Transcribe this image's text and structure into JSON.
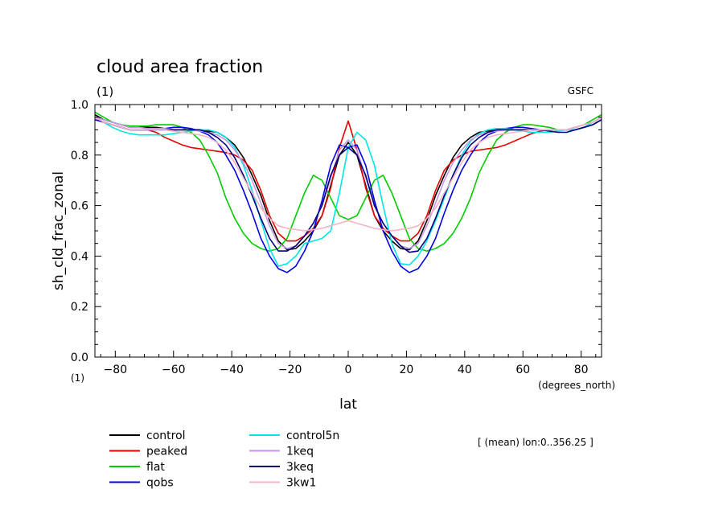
{
  "chart_data": {
    "type": "line",
    "title": "cloud area fraction",
    "subtitle": "(1)",
    "source_label": "GSFC",
    "ylabel": "sh_cld_frac_zonal",
    "xlabel": "lat",
    "xunits": "(degrees_north)",
    "yunits": "(1)",
    "annotation": "[ (mean) lon:0..356.25 ]",
    "xlim": [
      -87,
      87
    ],
    "ylim": [
      0.0,
      1.0
    ],
    "xticks": [
      -80,
      -60,
      -40,
      -20,
      0,
      20,
      40,
      60,
      80
    ],
    "xtick_labels": [
      "−80",
      "−60",
      "−40",
      "−20",
      "0",
      "20",
      "40",
      "60",
      "80"
    ],
    "yticks": [
      0.0,
      0.2,
      0.4,
      0.6,
      0.8,
      1.0
    ],
    "ytick_labels": [
      "0.0",
      "0.2",
      "0.4",
      "0.6",
      "0.8",
      "1.0"
    ],
    "x": [
      -87,
      -84,
      -81,
      -78,
      -75,
      -72,
      -69,
      -66,
      -63,
      -60,
      -57,
      -54,
      -51,
      -48,
      -45,
      -42,
      -39,
      -36,
      -33,
      -30,
      -27,
      -24,
      -21,
      -18,
      -15,
      -12,
      -9,
      -6,
      -3,
      0,
      3,
      6,
      9,
      12,
      15,
      18,
      21,
      24,
      27,
      30,
      33,
      36,
      39,
      42,
      45,
      48,
      51,
      54,
      57,
      60,
      63,
      66,
      69,
      72,
      75,
      78,
      81,
      84,
      87
    ],
    "series": [
      {
        "name": "control",
        "color": "#000000",
        "values": [
          0.96,
          0.94,
          0.93,
          0.92,
          0.91,
          0.91,
          0.91,
          0.91,
          0.905,
          0.9,
          0.9,
          0.9,
          0.9,
          0.895,
          0.89,
          0.87,
          0.84,
          0.79,
          0.72,
          0.64,
          0.54,
          0.46,
          0.425,
          0.43,
          0.46,
          0.5,
          0.56,
          0.68,
          0.8,
          0.85,
          0.8,
          0.68,
          0.56,
          0.5,
          0.46,
          0.43,
          0.425,
          0.46,
          0.54,
          0.64,
          0.72,
          0.79,
          0.84,
          0.87,
          0.89,
          0.895,
          0.9,
          0.9,
          0.9,
          0.9,
          0.9,
          0.9,
          0.9,
          0.9,
          0.9,
          0.91,
          0.92,
          0.93,
          0.95
        ]
      },
      {
        "name": "peaked",
        "color": "#e60000",
        "values": [
          0.95,
          0.93,
          0.92,
          0.91,
          0.9,
          0.9,
          0.9,
          0.89,
          0.87,
          0.855,
          0.84,
          0.83,
          0.825,
          0.82,
          0.815,
          0.81,
          0.8,
          0.78,
          0.74,
          0.66,
          0.56,
          0.49,
          0.46,
          0.46,
          0.48,
          0.51,
          0.56,
          0.67,
          0.83,
          0.935,
          0.82,
          0.67,
          0.56,
          0.51,
          0.48,
          0.46,
          0.46,
          0.49,
          0.56,
          0.66,
          0.74,
          0.78,
          0.8,
          0.815,
          0.82,
          0.825,
          0.83,
          0.84,
          0.855,
          0.87,
          0.885,
          0.895,
          0.9,
          0.9,
          0.9,
          0.91,
          0.92,
          0.93,
          0.95
        ]
      },
      {
        "name": "flat",
        "color": "#00cc00",
        "values": [
          0.97,
          0.95,
          0.93,
          0.92,
          0.915,
          0.915,
          0.915,
          0.92,
          0.92,
          0.92,
          0.91,
          0.89,
          0.86,
          0.8,
          0.73,
          0.63,
          0.55,
          0.49,
          0.45,
          0.43,
          0.42,
          0.43,
          0.47,
          0.56,
          0.65,
          0.72,
          0.7,
          0.63,
          0.56,
          0.545,
          0.56,
          0.63,
          0.7,
          0.72,
          0.65,
          0.56,
          0.47,
          0.43,
          0.42,
          0.43,
          0.45,
          0.49,
          0.55,
          0.63,
          0.73,
          0.8,
          0.86,
          0.89,
          0.91,
          0.92,
          0.92,
          0.915,
          0.91,
          0.9,
          0.9,
          0.91,
          0.92,
          0.94,
          0.96
        ]
      },
      {
        "name": "qobs",
        "color": "#0000e6",
        "values": [
          0.94,
          0.93,
          0.92,
          0.91,
          0.9,
          0.9,
          0.9,
          0.9,
          0.905,
          0.91,
          0.91,
          0.905,
          0.895,
          0.88,
          0.85,
          0.8,
          0.74,
          0.66,
          0.57,
          0.47,
          0.4,
          0.35,
          0.335,
          0.36,
          0.42,
          0.5,
          0.62,
          0.76,
          0.84,
          0.83,
          0.84,
          0.76,
          0.62,
          0.5,
          0.42,
          0.36,
          0.335,
          0.35,
          0.4,
          0.47,
          0.57,
          0.66,
          0.74,
          0.8,
          0.85,
          0.88,
          0.895,
          0.905,
          0.91,
          0.91,
          0.905,
          0.9,
          0.9,
          0.9,
          0.9,
          0.9,
          0.91,
          0.92,
          0.94
        ]
      },
      {
        "name": "control5n",
        "color": "#00e6e6",
        "values": [
          0.95,
          0.93,
          0.91,
          0.895,
          0.885,
          0.88,
          0.88,
          0.88,
          0.88,
          0.885,
          0.89,
          0.895,
          0.9,
          0.9,
          0.89,
          0.87,
          0.83,
          0.76,
          0.66,
          0.54,
          0.43,
          0.36,
          0.37,
          0.4,
          0.45,
          0.46,
          0.47,
          0.5,
          0.65,
          0.83,
          0.89,
          0.86,
          0.76,
          0.6,
          0.45,
          0.37,
          0.365,
          0.4,
          0.46,
          0.54,
          0.63,
          0.72,
          0.8,
          0.855,
          0.885,
          0.9,
          0.905,
          0.905,
          0.9,
          0.895,
          0.89,
          0.89,
          0.89,
          0.895,
          0.9,
          0.9,
          0.91,
          0.93,
          0.95
        ]
      },
      {
        "name": "1keq",
        "color": "#c896e6",
        "values": [
          0.95,
          0.94,
          0.93,
          0.92,
          0.91,
          0.91,
          0.905,
          0.905,
          0.905,
          0.9,
          0.9,
          0.9,
          0.895,
          0.89,
          0.88,
          0.86,
          0.82,
          0.77,
          0.7,
          0.61,
          0.52,
          0.45,
          0.43,
          0.44,
          0.48,
          0.53,
          0.6,
          0.71,
          0.82,
          0.86,
          0.82,
          0.71,
          0.6,
          0.53,
          0.48,
          0.44,
          0.43,
          0.45,
          0.52,
          0.61,
          0.7,
          0.77,
          0.82,
          0.86,
          0.88,
          0.89,
          0.895,
          0.9,
          0.9,
          0.9,
          0.9,
          0.9,
          0.9,
          0.9,
          0.9,
          0.91,
          0.92,
          0.93,
          0.95
        ]
      },
      {
        "name": "3keq",
        "color": "#000080",
        "values": [
          0.95,
          0.93,
          0.92,
          0.91,
          0.9,
          0.9,
          0.9,
          0.9,
          0.9,
          0.9,
          0.9,
          0.9,
          0.9,
          0.89,
          0.87,
          0.84,
          0.79,
          0.72,
          0.64,
          0.55,
          0.47,
          0.42,
          0.42,
          0.44,
          0.48,
          0.53,
          0.6,
          0.72,
          0.8,
          0.83,
          0.8,
          0.72,
          0.6,
          0.53,
          0.48,
          0.44,
          0.415,
          0.42,
          0.47,
          0.55,
          0.64,
          0.72,
          0.79,
          0.84,
          0.87,
          0.89,
          0.9,
          0.9,
          0.9,
          0.9,
          0.9,
          0.9,
          0.895,
          0.89,
          0.89,
          0.9,
          0.91,
          0.92,
          0.94
        ]
      },
      {
        "name": "3kw1",
        "color": "#f5b4c3",
        "values": [
          0.95,
          0.93,
          0.92,
          0.91,
          0.9,
          0.9,
          0.9,
          0.9,
          0.9,
          0.895,
          0.89,
          0.885,
          0.88,
          0.87,
          0.85,
          0.82,
          0.77,
          0.71,
          0.65,
          0.59,
          0.55,
          0.52,
          0.51,
          0.505,
          0.5,
          0.505,
          0.51,
          0.52,
          0.53,
          0.54,
          0.53,
          0.52,
          0.51,
          0.505,
          0.5,
          0.505,
          0.51,
          0.52,
          0.55,
          0.59,
          0.65,
          0.71,
          0.77,
          0.82,
          0.85,
          0.87,
          0.88,
          0.885,
          0.89,
          0.895,
          0.9,
          0.9,
          0.9,
          0.9,
          0.9,
          0.91,
          0.92,
          0.93,
          0.95
        ]
      }
    ]
  }
}
